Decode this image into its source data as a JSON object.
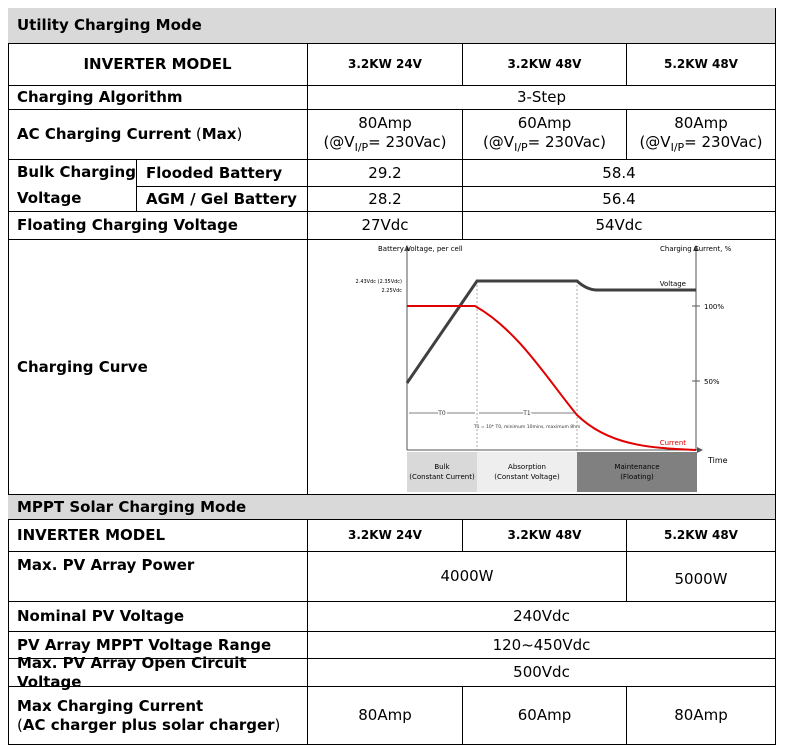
{
  "utility": {
    "title": "Utility Charging Mode",
    "model_header": "INVERTER MODEL",
    "models": [
      "3.2KW 24V",
      "3.2KW 48V",
      "5.2KW 48V"
    ],
    "algorithm": {
      "label": "Charging Algorithm",
      "value": "3-Step"
    },
    "ac_current": {
      "label": "AC Charging Current",
      "label_paren_open": "(",
      "label_max": "Max",
      "label_paren_close": ")",
      "values": [
        {
          "amp": "80Amp",
          "prefix": "(@V",
          "sub": "I/P",
          "suffix": "= 230Vac)"
        },
        {
          "amp": "60Amp",
          "prefix": "(@V",
          "sub": "I/P",
          "suffix": "= 230Vac)"
        },
        {
          "amp": "80Amp",
          "prefix": "(@V",
          "sub": "I/P",
          "suffix": "= 230Vac)"
        }
      ]
    },
    "bulk": {
      "label": [
        "Bulk Charging",
        "Voltage"
      ],
      "flooded": {
        "label": "Flooded Battery",
        "values": [
          "29.2",
          "58.4"
        ]
      },
      "agm": {
        "label": "AGM / Gel Battery",
        "values": [
          "28.2",
          "56.4"
        ]
      }
    },
    "floating": {
      "label": "Floating Charging Voltage",
      "values": [
        "27Vdc",
        "54Vdc"
      ]
    },
    "curve": {
      "label": "Charging Curve",
      "y_label": "Battery Voltage, per cell",
      "y2_label": "Charging Current, %",
      "v_high": "2.43Vdc (2.35Vdc)",
      "v_float": "2.25Vdc",
      "voltage": "Voltage",
      "current": "Current",
      "pct_100": "100%",
      "pct_50": "50%",
      "time": "Time",
      "t0": "T0",
      "t1": "T1",
      "t_note": "T1 = 10* T0, minimum 10mins, maximum 8hrs",
      "phases": [
        {
          "name": "Bulk",
          "mode": "(Constant Current)"
        },
        {
          "name": "Absorption",
          "mode": "(Constant Voltage)"
        },
        {
          "name": "Maintenance",
          "mode": "(Floating)"
        }
      ]
    }
  },
  "mppt": {
    "title": "MPPT Solar Charging Mode",
    "model_header": "INVERTER MODEL",
    "models": [
      "3.2KW 24V",
      "3.2KW 48V",
      "5.2KW 48V"
    ],
    "pv_power": {
      "label": "Max. PV Array Power",
      "values": [
        "4000W",
        "5000W"
      ]
    },
    "nominal": {
      "label": "Nominal PV Voltage",
      "value": "240Vdc"
    },
    "mppt_range": {
      "label": "PV Array MPPT Voltage Range",
      "value": "120~450Vdc"
    },
    "open_circuit": {
      "label": "Max. PV Array Open Circuit Voltage",
      "value": "500Vdc"
    },
    "max_current": {
      "label": [
        "Max Charging Current",
        "(",
        "AC charger plus solar charger",
        ")"
      ],
      "values": [
        "80Amp",
        "60Amp",
        "80Amp"
      ]
    }
  }
}
